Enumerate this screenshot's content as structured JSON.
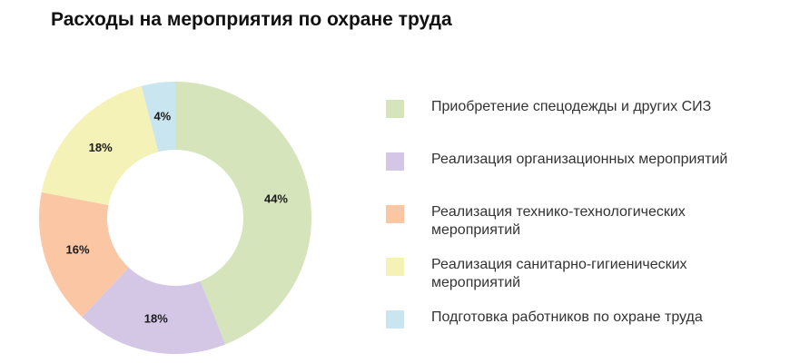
{
  "chart_data": {
    "type": "pie",
    "title": "Расходы на мероприятия по охране труда",
    "categories": [
      "Приобретение спецодежды и других СИЗ",
      "Реализация организационных мероприятий",
      "Реализация технико-технологических мероприятий",
      "Реализация санитарно-гигиенических мероприятий",
      "Подготовка работников по охране труда"
    ],
    "values": [
      44,
      18,
      16,
      18,
      4
    ],
    "value_labels": [
      "44%",
      "18%",
      "16%",
      "18%",
      "4%"
    ],
    "colors": [
      "#d6e4bb",
      "#d4c7e6",
      "#fbc6a4",
      "#f5f2b7",
      "#c9e6f0"
    ],
    "donut": true,
    "legend_position": "right"
  }
}
